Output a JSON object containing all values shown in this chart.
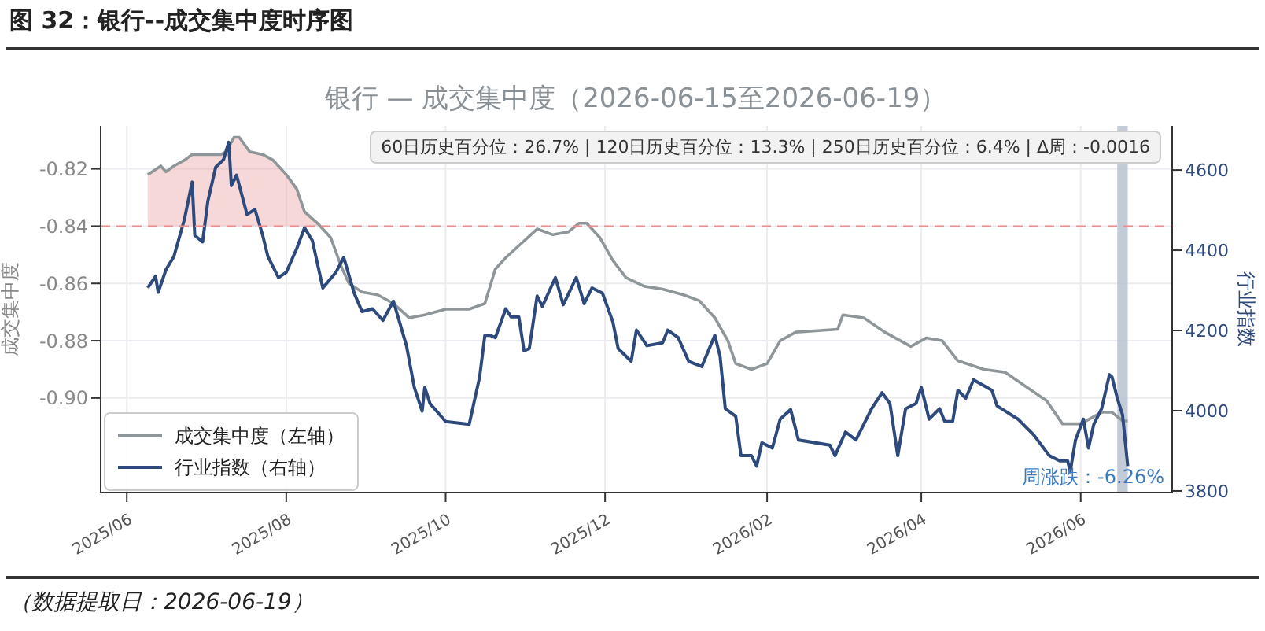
{
  "chart_data": {
    "type": "line",
    "title": "银行 — 成交集中度（2026-06-15至2026-06-19）",
    "ylabel": "成交集中度",
    "y2label": "行业指数",
    "annotations": [
      "图 32：银行--成交集中度时序图",
      "60日历史百分位：26.7% | 120日历史百分位：13.3% | 250日历史百分位：6.4% | Δ周：-0.0016",
      "周涨跌：-6.26%",
      "（数据提取日：2026-06-19）"
    ],
    "xlim": [
      "2025-05-22",
      "2026-07-06"
    ],
    "xticks": [
      {
        "value": "2025-06-01",
        "label": "2025/06"
      },
      {
        "value": "2025-08-01",
        "label": "2025/08"
      },
      {
        "value": "2025-10-01",
        "label": "2025/10"
      },
      {
        "value": "2025-12-01",
        "label": "2025/12"
      },
      {
        "value": "2026-02-01",
        "label": "2026/02"
      },
      {
        "value": "2026-04-01",
        "label": "2026/04"
      },
      {
        "value": "2026-06-01",
        "label": "2026/06"
      }
    ],
    "ylim": [
      -0.933,
      -0.805
    ],
    "yticks": [
      -0.82,
      -0.84,
      -0.86,
      -0.88,
      {
        "value": -0.9,
        "label": "-0.90"
      }
    ],
    "y2lim": [
      3796,
      4710
    ],
    "y2ticks": [
      3800,
      4000,
      4200,
      4400,
      4600
    ],
    "grid": true,
    "legend": "bottom left",
    "line_style": "solid",
    "ref_lines": [
      {
        "axis": "y",
        "value": -0.84,
        "color": "#e89090",
        "line_style": "dashed"
      }
    ],
    "bands": [
      {
        "axis": "x",
        "from": "2026-06-15",
        "to": "2026-06-19",
        "color": "#b9c2d0"
      }
    ],
    "series": [
      {
        "name": "成交集中度（左轴）",
        "color": "#8f9699",
        "x": [
          "2025-06-09",
          "2025-06-14",
          "2025-06-16",
          "2025-06-19",
          "2025-06-23",
          "2025-06-26",
          "2025-07-01",
          "2025-07-07",
          "2025-07-09",
          "2025-07-12",
          "2025-07-14",
          "2025-07-18",
          "2025-07-23",
          "2025-07-27",
          "2025-08-01",
          "2025-08-05",
          "2025-08-08",
          "2025-08-13",
          "2025-08-18",
          "2025-08-22",
          "2025-08-25",
          "2025-08-30",
          "2025-09-05",
          "2025-09-11",
          "2025-09-17",
          "2025-09-23",
          "2025-10-01",
          "2025-10-10",
          "2025-10-16",
          "2025-10-20",
          "2025-10-24",
          "2025-10-30",
          "2025-11-05",
          "2025-11-11",
          "2025-11-17",
          "2025-11-21",
          "2025-11-24",
          "2025-11-29",
          "2025-12-04",
          "2025-12-09",
          "2025-12-16",
          "2025-12-23",
          "2025-12-31",
          "2026-01-06",
          "2026-01-12",
          "2026-01-17",
          "2026-01-20",
          "2026-01-26",
          "2026-02-01",
          "2026-02-06",
          "2026-02-12",
          "2026-02-28",
          "2026-03-02",
          "2026-03-10",
          "2026-03-18",
          "2026-03-28",
          "2026-04-03",
          "2026-04-09",
          "2026-04-15",
          "2026-04-25",
          "2026-05-03",
          "2026-05-11",
          "2026-05-19",
          "2026-05-25",
          "2026-06-01",
          "2026-06-09",
          "2026-06-13",
          "2026-06-17",
          "2026-06-19"
        ],
        "values": [
          -0.822,
          -0.819,
          -0.821,
          -0.819,
          -0.817,
          -0.815,
          -0.815,
          -0.815,
          -0.814,
          -0.809,
          -0.809,
          -0.814,
          -0.815,
          -0.817,
          -0.822,
          -0.827,
          -0.835,
          -0.839,
          -0.844,
          -0.854,
          -0.86,
          -0.863,
          -0.864,
          -0.867,
          -0.872,
          -0.871,
          -0.869,
          -0.869,
          -0.867,
          -0.855,
          -0.851,
          -0.846,
          -0.841,
          -0.843,
          -0.842,
          -0.839,
          -0.839,
          -0.844,
          -0.852,
          -0.858,
          -0.861,
          -0.862,
          -0.864,
          -0.866,
          -0.872,
          -0.88,
          -0.888,
          -0.89,
          -0.888,
          -0.88,
          -0.877,
          -0.876,
          -0.871,
          -0.872,
          -0.877,
          -0.882,
          -0.879,
          -0.88,
          -0.887,
          -0.89,
          -0.891,
          -0.896,
          -0.901,
          -0.909,
          -0.909,
          -0.905,
          -0.905,
          -0.908,
          -0.908
        ],
        "lower": [
          -0.84,
          -0.84,
          -0.84,
          -0.84,
          -0.84,
          -0.84,
          -0.84,
          -0.84,
          -0.84,
          -0.84,
          -0.84,
          -0.84,
          -0.84,
          -0.84,
          -0.84,
          -0.84,
          -0.84,
          -0.84,
          null,
          null,
          null,
          null,
          null,
          null,
          null,
          null,
          null,
          null,
          null,
          null,
          null,
          null,
          null,
          null,
          null,
          null,
          null,
          null,
          null,
          null,
          null,
          null,
          null,
          null,
          null,
          null,
          null,
          null,
          null,
          null,
          null,
          null,
          null,
          null,
          null,
          null,
          null,
          null,
          null,
          null,
          null,
          null,
          null,
          null,
          null,
          null,
          null,
          null,
          null
        ],
        "upper": [
          -0.822,
          -0.819,
          -0.821,
          -0.819,
          -0.817,
          -0.815,
          -0.815,
          -0.815,
          -0.814,
          -0.809,
          -0.809,
          -0.814,
          -0.815,
          -0.817,
          -0.822,
          -0.827,
          -0.835,
          -0.839,
          null,
          null,
          null,
          null,
          null,
          null,
          null,
          null,
          null,
          null,
          null,
          null,
          null,
          null,
          null,
          null,
          null,
          null,
          null,
          null,
          null,
          null,
          null,
          null,
          null,
          null,
          null,
          null,
          null,
          null,
          null,
          null,
          null,
          null,
          null,
          null,
          null,
          null,
          null,
          null,
          null,
          null,
          null,
          null,
          null,
          null,
          null,
          null,
          null,
          null,
          null
        ]
      },
      {
        "name": "行业指数（右轴）",
        "color": "#2e4a7d",
        "axis": "y2",
        "x": [
          "2025-06-09",
          "2025-06-12",
          "2025-06-13",
          "2025-06-16",
          "2025-06-19",
          "2025-06-23",
          "2025-06-26",
          "2025-06-27",
          "2025-06-30",
          "2025-07-02",
          "2025-07-05",
          "2025-07-08",
          "2025-07-10",
          "2025-07-11",
          "2025-07-13",
          "2025-07-17",
          "2025-07-20",
          "2025-07-23",
          "2025-07-25",
          "2025-07-29",
          "2025-08-01",
          "2025-08-05",
          "2025-08-08",
          "2025-08-11",
          "2025-08-15",
          "2025-08-20",
          "2025-08-23",
          "2025-08-27",
          "2025-08-30",
          "2025-09-03",
          "2025-09-07",
          "2025-09-11",
          "2025-09-16",
          "2025-09-19",
          "2025-09-22",
          "2025-09-23",
          "2025-09-25",
          "2025-10-01",
          "2025-10-10",
          "2025-10-14",
          "2025-10-16",
          "2025-10-18",
          "2025-10-20",
          "2025-10-24",
          "2025-10-26",
          "2025-10-29",
          "2025-10-31",
          "2025-11-02",
          "2025-11-05",
          "2025-11-07",
          "2025-11-12",
          "2025-11-15",
          "2025-11-20",
          "2025-11-23",
          "2025-11-26",
          "2025-11-30",
          "2025-12-04",
          "2025-12-06",
          "2025-12-11",
          "2025-12-13",
          "2025-12-17",
          "2025-12-23",
          "2025-12-25",
          "2025-12-29",
          "2026-01-02",
          "2026-01-07",
          "2026-01-12",
          "2026-01-14",
          "2026-01-16",
          "2026-01-20",
          "2026-01-22",
          "2026-01-26",
          "2026-01-28",
          "2026-01-30",
          "2026-02-03",
          "2026-02-06",
          "2026-02-10",
          "2026-02-13",
          "2026-02-25",
          "2026-02-27",
          "2026-03-03",
          "2026-03-07",
          "2026-03-13",
          "2026-03-17",
          "2026-03-20",
          "2026-03-23",
          "2026-03-26",
          "2026-03-30",
          "2026-04-01",
          "2026-04-04",
          "2026-04-08",
          "2026-04-10",
          "2026-04-13",
          "2026-04-15",
          "2026-04-18",
          "2026-04-21",
          "2026-04-28",
          "2026-04-30",
          "2026-05-08",
          "2026-05-14",
          "2026-05-20",
          "2026-05-24",
          "2026-05-27",
          "2026-05-28",
          "2026-05-30",
          "2026-06-02",
          "2026-06-04",
          "2026-06-06",
          "2026-06-09",
          "2026-06-12",
          "2026-06-13",
          "2026-06-15",
          "2026-06-17",
          "2026-06-19"
        ],
        "values": [
          4306,
          4335,
          4295,
          4352,
          4384,
          4476,
          4570,
          4437,
          4421,
          4522,
          4607,
          4626,
          4669,
          4561,
          4587,
          4489,
          4502,
          4437,
          4384,
          4332,
          4345,
          4404,
          4456,
          4424,
          4306,
          4345,
          4382,
          4293,
          4247,
          4254,
          4225,
          4273,
          4162,
          4058,
          3999,
          4058,
          4018,
          3973,
          3966,
          4084,
          4188,
          4188,
          4182,
          4254,
          4234,
          4234,
          4149,
          4155,
          4286,
          4260,
          4332,
          4264,
          4332,
          4267,
          4306,
          4293,
          4221,
          4155,
          4123,
          4201,
          4162,
          4169,
          4201,
          4182,
          4123,
          4110,
          4188,
          4136,
          4005,
          3986,
          3888,
          3888,
          3862,
          3920,
          3907,
          3979,
          4003,
          3927,
          3914,
          3888,
          3947,
          3927,
          4005,
          4045,
          4018,
          3888,
          4005,
          4018,
          4058,
          3979,
          4005,
          3973,
          3973,
          4051,
          4031,
          4077,
          4051,
          4012,
          3979,
          3940,
          3888,
          3875,
          3875,
          3848,
          3927,
          3979,
          3907,
          3966,
          4005,
          4090,
          4084,
          4031,
          3990,
          3862
        ]
      }
    ]
  }
}
